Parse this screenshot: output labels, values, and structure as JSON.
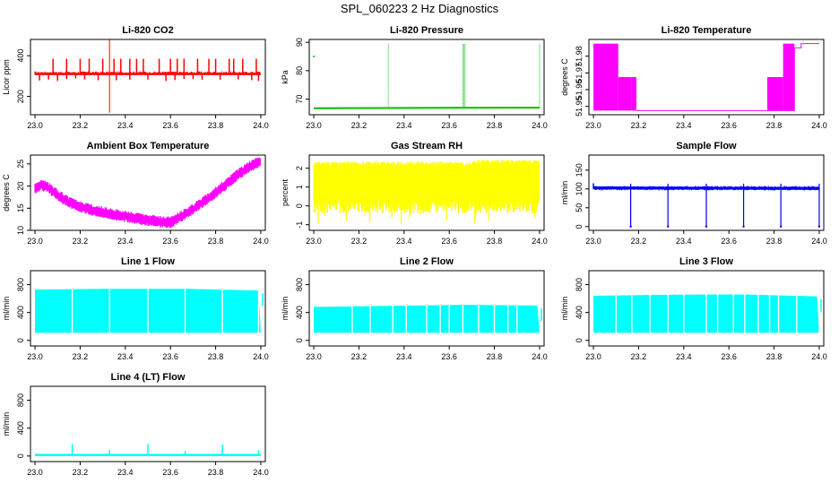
{
  "title": "SPL_060223  2 Hz Diagnostics",
  "colors": {
    "red": "#ff0000",
    "green": "#00c000",
    "magenta": "#ff00ff",
    "yellow": "#ffff00",
    "blue": "#0000ff",
    "cyan": "#00ffff"
  },
  "chart_data": [
    {
      "type": "line",
      "title": "Li-820 CO2",
      "ylabel": "Licor ppm",
      "color": "red",
      "xlim": [
        22.98,
        24.02
      ],
      "ylim": [
        110,
        480
      ],
      "xticks": [
        "23.0",
        "23.2",
        "23.4",
        "23.6",
        "23.8",
        "24.0"
      ],
      "yticks": [
        {
          "v": 200,
          "label": "200"
        },
        {
          "v": 400,
          "label": "400"
        }
      ],
      "x": [
        23.0,
        24.0
      ],
      "y": [
        310,
        310
      ],
      "baseline": 310,
      "spikes_up": [
        23.08,
        23.14,
        23.2,
        23.24,
        23.3,
        23.35,
        23.38,
        23.42,
        23.45,
        23.48,
        23.55,
        23.6,
        23.63,
        23.66,
        23.72,
        23.77,
        23.8,
        23.86,
        23.88,
        23.92,
        23.98
      ],
      "spike_up_value": 385,
      "spikes_down": [
        23.02,
        23.06,
        23.1,
        23.14,
        23.18,
        23.22,
        23.28,
        23.36,
        23.42,
        23.5,
        23.58,
        23.62,
        23.66,
        23.7,
        23.74,
        23.82,
        23.9,
        23.96,
        23.99
      ],
      "spike_down_value": 275,
      "big_spike": {
        "x": 23.33,
        "ymin": 120,
        "ymax": 480
      }
    },
    {
      "type": "line",
      "title": "Li-820 Pressure",
      "ylabel": "kPa",
      "color": "green",
      "xlim": [
        22.98,
        24.02
      ],
      "ylim": [
        64.5,
        91
      ],
      "xticks": [
        "23.0",
        "23.2",
        "23.4",
        "23.6",
        "23.8",
        "24.0"
      ],
      "yticks": [
        {
          "v": 70,
          "label": "70"
        },
        {
          "v": 80,
          "label": "80"
        },
        {
          "v": 90,
          "label": "90"
        }
      ],
      "x": [
        23.0,
        24.0
      ],
      "y": [
        66.8,
        67.0
      ],
      "baseline": 66.9,
      "spikes_up": [
        23.33,
        23.66,
        23.665,
        23.67,
        24.0
      ],
      "spike_up_value": 89.5,
      "outlier": {
        "x": 23.0,
        "y": 85
      }
    },
    {
      "type": "area",
      "title": "Li-820 Temperature",
      "ylabel": "degrees C",
      "color": "magenta",
      "xlim": [
        22.98,
        24.02
      ],
      "ylim": [
        51.945,
        51.99
      ],
      "xticks": [
        "23.0",
        "23.2",
        "23.4",
        "23.6",
        "23.8",
        "24.0"
      ],
      "yticks": [
        {
          "v": 51.95,
          "label": "51.95"
        },
        {
          "v": 51.96,
          "label": "51.96"
        },
        {
          "v": 51.97,
          "label": "51.97"
        },
        {
          "v": 51.98,
          "label": "51.98"
        }
      ],
      "blocks": [
        {
          "x0": 23.0,
          "x1": 23.11,
          "y0": 51.9475,
          "y1": 51.9875
        },
        {
          "x0": 23.11,
          "x1": 23.17,
          "y0": 51.9475,
          "y1": 51.9675
        },
        {
          "x0": 23.17,
          "x1": 23.19,
          "y0": 51.9475,
          "y1": 51.9675
        },
        {
          "x0": 23.77,
          "x1": 23.84,
          "y0": 51.9475,
          "y1": 51.9675
        },
        {
          "x0": 23.84,
          "x1": 23.89,
          "y0": 51.9475,
          "y1": 51.9875
        }
      ],
      "line": {
        "x": [
          23.19,
          23.89,
          23.89,
          23.92,
          23.92,
          24.0
        ],
        "y": [
          51.9475,
          51.9475,
          51.985,
          51.985,
          51.9875,
          51.9875
        ]
      }
    },
    {
      "type": "line",
      "title": "Ambient Box Temperature",
      "ylabel": "degrees C",
      "color": "magenta",
      "xlim": [
        22.98,
        24.02
      ],
      "ylim": [
        10,
        27
      ],
      "xticks": [
        "23.0",
        "23.2",
        "23.4",
        "23.6",
        "23.8",
        "24.0"
      ],
      "yticks": [
        {
          "v": 10,
          "label": "10"
        },
        {
          "v": 15,
          "label": "15"
        },
        {
          "v": 20,
          "label": "20"
        },
        {
          "v": 25,
          "label": "25"
        }
      ],
      "x": [
        23.0,
        23.03,
        23.06,
        23.1,
        23.15,
        23.2,
        23.25,
        23.3,
        23.35,
        23.4,
        23.45,
        23.5,
        23.55,
        23.6,
        23.62,
        23.65,
        23.7,
        23.75,
        23.8,
        23.85,
        23.9,
        23.95,
        24.0
      ],
      "y": [
        19.5,
        20.2,
        19.6,
        18.0,
        16.3,
        15.3,
        14.6,
        14.1,
        13.6,
        13.2,
        12.7,
        12.3,
        12.0,
        11.8,
        12.3,
        13.2,
        14.8,
        16.6,
        18.5,
        20.6,
        22.6,
        24.4,
        25.6
      ],
      "band": 1.2
    },
    {
      "type": "line",
      "title": "Gas Stream RH",
      "ylabel": "percent",
      "color": "yellow",
      "xlim": [
        22.98,
        24.02
      ],
      "ylim": [
        -1.3,
        2.7
      ],
      "xticks": [
        "23.0",
        "23.2",
        "23.4",
        "23.6",
        "23.8",
        "24.0"
      ],
      "yticks": [
        {
          "v": -1,
          "label": "-1"
        },
        {
          "v": 0,
          "label": "0"
        },
        {
          "v": 1,
          "label": "1"
        },
        {
          "v": 2,
          "label": "2"
        }
      ],
      "x": [
        23.0,
        24.0
      ],
      "y": [
        0.9,
        1.1
      ],
      "band_low": -0.4,
      "band_high": 2.35
    },
    {
      "type": "line",
      "title": "Sample Flow",
      "ylabel": "ml/min",
      "color": "blue",
      "xlim": [
        22.98,
        24.02
      ],
      "ylim": [
        -10,
        190
      ],
      "xticks": [
        "23.0",
        "23.2",
        "23.4",
        "23.6",
        "23.8",
        "24.0"
      ],
      "yticks": [
        {
          "v": 0,
          "label": "0"
        },
        {
          "v": 50,
          "label": "50"
        },
        {
          "v": 100,
          "label": "100"
        },
        {
          "v": 150,
          "label": "150"
        }
      ],
      "x": [
        23.0,
        24.0
      ],
      "y": [
        103,
        101
      ],
      "baseline": 102,
      "spikes_down": [
        23.165,
        23.33,
        23.5,
        23.665,
        23.83,
        24.0
      ],
      "spike_down_value": 0
    },
    {
      "type": "line",
      "title": "Line 1 Flow",
      "ylabel": "ml/min",
      "color": "cyan",
      "xlim": [
        22.98,
        24.02
      ],
      "ylim": [
        -80,
        1000
      ],
      "xticks": [
        "23.0",
        "23.2",
        "23.4",
        "23.6",
        "23.8",
        "24.0"
      ],
      "yticks": [
        {
          "v": 0,
          "label": "0"
        },
        {
          "v": 400,
          "label": "400"
        },
        {
          "v": 800,
          "label": "800"
        }
      ],
      "x": [
        23.0,
        23.33,
        23.67,
        24.0
      ],
      "y": [
        730,
        740,
        740,
        715
      ],
      "low": 110,
      "gaps": [
        23.165,
        23.33,
        23.5,
        23.665,
        23.83,
        23.99
      ]
    },
    {
      "type": "line",
      "title": "Line 2 Flow",
      "ylabel": "ml/min",
      "color": "cyan",
      "xlim": [
        22.98,
        24.02
      ],
      "ylim": [
        -80,
        1000
      ],
      "xticks": [
        "23.0",
        "23.2",
        "23.4",
        "23.6",
        "23.8",
        "24.0"
      ],
      "yticks": [
        {
          "v": 0,
          "label": "0"
        },
        {
          "v": 400,
          "label": "400"
        },
        {
          "v": 800,
          "label": "800"
        }
      ],
      "x": [
        23.0,
        23.33,
        23.67,
        24.0
      ],
      "y": [
        480,
        495,
        510,
        500
      ],
      "low": 110,
      "gaps": [
        23.17,
        23.25,
        23.35,
        23.41,
        23.5,
        23.56,
        23.6,
        23.66,
        23.73,
        23.8,
        23.86,
        23.9
      ]
    },
    {
      "type": "line",
      "title": "Line 3 Flow",
      "ylabel": "ml/min",
      "color": "cyan",
      "xlim": [
        22.98,
        24.02
      ],
      "ylim": [
        -80,
        1000
      ],
      "xticks": [
        "23.0",
        "23.2",
        "23.4",
        "23.6",
        "23.8",
        "24.0"
      ],
      "yticks": [
        {
          "v": 0,
          "label": "0"
        },
        {
          "v": 400,
          "label": "400"
        },
        {
          "v": 800,
          "label": "800"
        }
      ],
      "x": [
        23.0,
        23.33,
        23.66,
        24.0
      ],
      "y": [
        640,
        655,
        660,
        630
      ],
      "low": 110,
      "gaps": [
        23.1,
        23.17,
        23.25,
        23.33,
        23.4,
        23.5,
        23.55,
        23.62,
        23.67,
        23.73,
        23.78,
        23.82,
        23.9,
        24.0
      ]
    },
    {
      "type": "line",
      "title": "Line 4 (LT) Flow",
      "ylabel": "ml/min",
      "color": "cyan",
      "xlim": [
        22.98,
        24.02
      ],
      "ylim": [
        -80,
        1000
      ],
      "xticks": [
        "23.0",
        "23.2",
        "23.4",
        "23.6",
        "23.8",
        "24.0"
      ],
      "yticks": [
        {
          "v": 0,
          "label": "0"
        },
        {
          "v": 400,
          "label": "400"
        },
        {
          "v": 800,
          "label": "800"
        }
      ],
      "x": [
        23.0,
        24.0
      ],
      "y": [
        15,
        15
      ],
      "baseline": 15,
      "spikes_up": [
        23.165,
        23.33,
        23.5,
        23.665,
        23.83,
        23.99
      ],
      "spike_heights": [
        175,
        90,
        170,
        75,
        165,
        80
      ]
    }
  ]
}
